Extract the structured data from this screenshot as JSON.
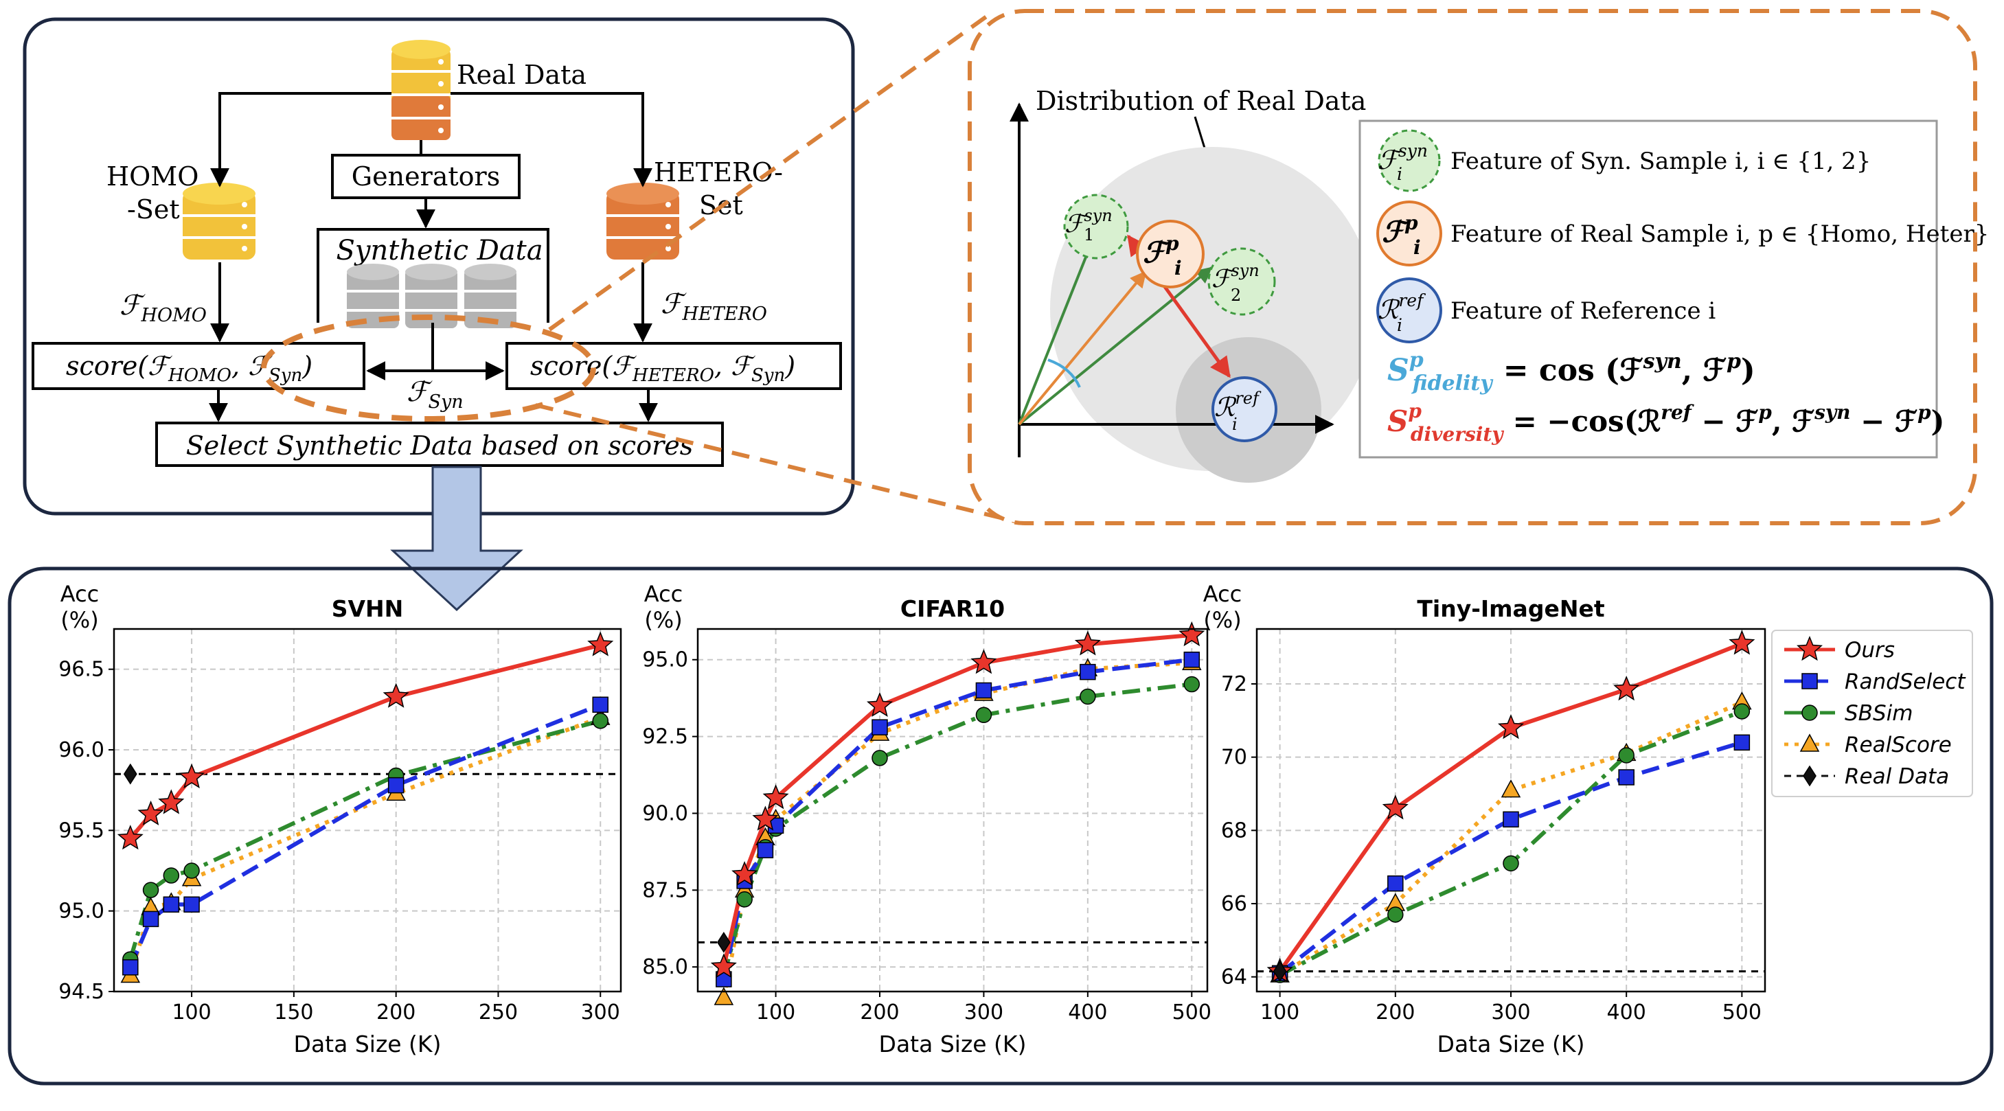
{
  "pipeline": {
    "real_data_label": "Real Data",
    "generators_label": "Generators",
    "homo_set_label": [
      "HOMO",
      "-Set"
    ],
    "hetero_set_label": [
      "HETERO-",
      "Set"
    ],
    "synthetic_data_label": "Synthetic Data",
    "f_homo_label": "ℱ",
    "f_homo_sub": "HOMO",
    "f_hetero_label": "ℱ",
    "f_hetero_sub": "HETERO",
    "f_syn_label": "ℱ",
    "f_syn_sub": "Syn",
    "score_left": {
      "prefix": "score(",
      "f1": "ℱ",
      "sub1": "HOMO",
      "mid": ", ",
      "f2": "ℱ",
      "sub2": "Syn",
      "suffix": ")"
    },
    "score_right": {
      "prefix": "score(",
      "f1": "ℱ",
      "sub1": "HETERO",
      "mid": ", ",
      "f2": "ℱ",
      "sub2": "Syn",
      "suffix": ")"
    },
    "select_label": "Select Synthetic Data based on scores"
  },
  "distribution": {
    "title": "Distribution of Real Data",
    "nodes": {
      "syn1": {
        "main": "ℱ",
        "sup": "syn",
        "sub": "1"
      },
      "syn2": {
        "main": "ℱ",
        "sup": "syn",
        "sub": "2"
      },
      "real": {
        "main": "ℱ",
        "sup": "p",
        "sub": "i"
      },
      "ref": {
        "main": "ℛ",
        "sup": "ref",
        "sub": "i"
      }
    },
    "legend": [
      {
        "symbol": "ℱ",
        "sup": "syn",
        "sub": "i",
        "text": "Feature of Syn. Sample i, i ∈ {1, 2}",
        "type": "syn"
      },
      {
        "symbol": "ℱ",
        "sup": "p",
        "sub": "i",
        "text": "Feature of Real Sample i, p ∈ {Homo, Heter}",
        "type": "real"
      },
      {
        "symbol": "ℛ",
        "sup": "ref",
        "sub": "i",
        "text": "Feature of Reference i",
        "type": "ref"
      }
    ],
    "fidelity": {
      "s": "S",
      "sup": "p",
      "sub": "fidelity",
      "eq": "= cos (ℱ",
      "sup2": "syn",
      "mid": ", ℱ",
      "sup3": "p",
      "end": ")",
      "color": "#4aa8d8"
    },
    "diversity": {
      "s": "S",
      "sup": "p",
      "sub": "diversity",
      "eq": "= −cos(ℛ",
      "sup2": "ref",
      "a": " − ℱ",
      "sup3": "p",
      "b": ",  ℱ",
      "sup4": "syn",
      "c": " − ℱ",
      "sup5": "p",
      "end": ")",
      "color": "#e03a2f"
    }
  },
  "colors": {
    "ours": "#e8352b",
    "randselect": "#1f2fe0",
    "sbsim": "#2e8b2e",
    "realscore": "#f5a623",
    "real_data": "#111111",
    "syn_fill": "#d8f0d0",
    "syn_stroke": "#3f9a3f",
    "real_fill": "#fde7d6",
    "real_stroke": "#e07a2e",
    "ref_fill": "#dce6f7",
    "ref_stroke": "#2f5aa8",
    "dashed_orange": "#d9813a",
    "down_arrow": "#b3c6e6"
  },
  "legend": {
    "items": [
      {
        "key": "ours",
        "label": "Ours"
      },
      {
        "key": "randselect",
        "label": "RandSelect"
      },
      {
        "key": "sbsim",
        "label": "SBSim"
      },
      {
        "key": "realscore",
        "label": "RealScore"
      },
      {
        "key": "real_data",
        "label": "Real Data"
      }
    ]
  },
  "chart_data": [
    {
      "type": "line",
      "title": "SVHN",
      "xlabel": "Data Size (K)",
      "ylabel": "Acc\n(%)",
      "ylabel_lines": [
        "Acc",
        "(%)"
      ],
      "xlim": [
        62,
        310
      ],
      "ylim": [
        94.5,
        96.75
      ],
      "xticks": [
        100,
        150,
        200,
        250,
        300
      ],
      "yticks": [
        94.5,
        95.0,
        95.5,
        96.0,
        96.5
      ],
      "ytick_labels": [
        "94.5",
        "95.0",
        "95.5",
        "96.0",
        "96.5"
      ],
      "xtick_labels": [
        "100",
        "150",
        "200",
        "250",
        "300"
      ],
      "real_data": {
        "x": 70,
        "y": 95.85
      },
      "series": [
        {
          "name": "Ours",
          "key": "ours",
          "x": [
            70,
            80,
            90,
            100,
            200,
            300
          ],
          "y": [
            95.45,
            95.6,
            95.67,
            95.83,
            96.33,
            96.65
          ]
        },
        {
          "name": "RandSelect",
          "key": "randselect",
          "x": [
            70,
            80,
            90,
            100,
            200,
            300
          ],
          "y": [
            94.65,
            94.95,
            95.04,
            95.04,
            95.78,
            96.28
          ]
        },
        {
          "name": "SBSim",
          "key": "sbsim",
          "x": [
            70,
            80,
            90,
            100,
            200,
            300
          ],
          "y": [
            94.7,
            95.13,
            95.22,
            95.25,
            95.84,
            96.18
          ]
        },
        {
          "name": "RealScore",
          "key": "realscore",
          "x": [
            70,
            80,
            90,
            100,
            200,
            300
          ],
          "y": [
            94.6,
            95.02,
            95.05,
            95.2,
            95.73,
            96.2
          ]
        }
      ]
    },
    {
      "type": "line",
      "title": "CIFAR10",
      "xlabel": "Data Size (K)",
      "ylabel": "Acc\n(%)",
      "ylabel_lines": [
        "Acc",
        "(%)"
      ],
      "xlim": [
        25,
        515
      ],
      "ylim": [
        84.2,
        96.0
      ],
      "xticks": [
        100,
        200,
        300,
        400,
        500
      ],
      "yticks": [
        85.0,
        87.5,
        90.0,
        92.5,
        95.0
      ],
      "ytick_labels": [
        "85.0",
        "87.5",
        "90.0",
        "92.5",
        "95.0"
      ],
      "xtick_labels": [
        "100",
        "200",
        "300",
        "400",
        "500"
      ],
      "real_data": {
        "x": 50,
        "y": 85.8
      },
      "series": [
        {
          "name": "Ours",
          "key": "ours",
          "x": [
            50,
            70,
            90,
            100,
            200,
            300,
            400,
            500
          ],
          "y": [
            85.0,
            88.0,
            89.8,
            90.5,
            93.5,
            94.9,
            95.5,
            95.8
          ]
        },
        {
          "name": "RandSelect",
          "key": "randselect",
          "x": [
            50,
            70,
            90,
            100,
            200,
            300,
            400,
            500
          ],
          "y": [
            84.6,
            87.8,
            88.8,
            89.6,
            92.8,
            94.0,
            94.6,
            95.0
          ]
        },
        {
          "name": "SBSim",
          "key": "sbsim",
          "x": [
            50,
            70,
            90,
            100,
            200,
            300,
            400,
            500
          ],
          "y": [
            84.7,
            87.2,
            88.9,
            89.5,
            91.8,
            93.2,
            93.8,
            94.2
          ]
        },
        {
          "name": "RealScore",
          "key": "realscore",
          "x": [
            50,
            70,
            90,
            100,
            200,
            300,
            400,
            500
          ],
          "y": [
            84.0,
            87.5,
            89.2,
            89.8,
            92.6,
            93.9,
            94.7,
            94.9
          ]
        }
      ]
    },
    {
      "type": "line",
      "title": "Tiny-ImageNet",
      "xlabel": "Data Size (K)",
      "ylabel": "Acc\n(%)",
      "ylabel_lines": [
        "Acc",
        "(%)"
      ],
      "xlim": [
        80,
        520
      ],
      "ylim": [
        63.6,
        73.5
      ],
      "xticks": [
        100,
        200,
        300,
        400,
        500
      ],
      "yticks": [
        64,
        66,
        68,
        70,
        72
      ],
      "ytick_labels": [
        "64",
        "66",
        "68",
        "70",
        "72"
      ],
      "xtick_labels": [
        "100",
        "200",
        "300",
        "400",
        "500"
      ],
      "real_data": {
        "x": 100,
        "y": 64.15
      },
      "series": [
        {
          "name": "Ours",
          "key": "ours",
          "x": [
            100,
            200,
            300,
            400,
            500
          ],
          "y": [
            64.15,
            68.6,
            70.8,
            71.85,
            73.1
          ]
        },
        {
          "name": "RandSelect",
          "key": "randselect",
          "x": [
            100,
            200,
            300,
            400,
            500
          ],
          "y": [
            64.1,
            66.55,
            68.3,
            69.45,
            70.4
          ]
        },
        {
          "name": "SBSim",
          "key": "sbsim",
          "x": [
            100,
            200,
            300,
            400,
            500
          ],
          "y": [
            64.05,
            65.7,
            67.1,
            70.05,
            71.25
          ]
        },
        {
          "name": "RealScore",
          "key": "realscore",
          "x": [
            100,
            200,
            300,
            400,
            500
          ],
          "y": [
            64.05,
            66.0,
            69.1,
            70.1,
            71.5
          ]
        }
      ]
    }
  ]
}
